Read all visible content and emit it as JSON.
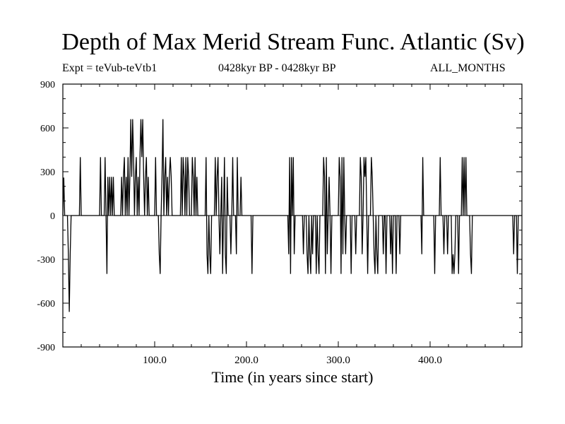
{
  "chart_data": {
    "type": "line",
    "title": "Depth of Max Merid Stream Func. Atlantic (Sv)",
    "subtitle_left": "Expt = teVub-teVtb1",
    "subtitle_center": "0428kyr BP - 0428kyr BP",
    "subtitle_right": "ALL_MONTHS",
    "xlabel": "Time (in years since start)",
    "ylabel": "",
    "xlim": [
      0,
      500
    ],
    "ylim": [
      -900,
      900
    ],
    "x_ticks": [
      100,
      200,
      300,
      400
    ],
    "x_tick_labels": [
      "100.0",
      "200.0",
      "300.0",
      "400.0"
    ],
    "y_ticks": [
      -900,
      -600,
      -300,
      0,
      300,
      600,
      900
    ],
    "y_tick_labels": [
      "-900",
      "-600",
      "-300",
      "0",
      "300",
      "600",
      "900"
    ],
    "grid": false,
    "legend": "none",
    "series": [
      {
        "color": "#000000",
        "points": [
          [
            0,
            0
          ],
          [
            1,
            260
          ],
          [
            2,
            0
          ],
          [
            5,
            0
          ],
          [
            6,
            -265
          ],
          [
            7,
            -660
          ],
          [
            8,
            -265
          ],
          [
            9,
            0
          ],
          [
            18,
            0
          ],
          [
            19,
            400
          ],
          [
            20,
            0
          ],
          [
            40,
            0
          ],
          [
            41,
            400
          ],
          [
            42,
            0
          ],
          [
            45,
            0
          ],
          [
            46,
            400
          ],
          [
            47,
            0
          ],
          [
            48,
            -400
          ],
          [
            49,
            265
          ],
          [
            50,
            0
          ],
          [
            51,
            265
          ],
          [
            52,
            0
          ],
          [
            53,
            265
          ],
          [
            54,
            0
          ],
          [
            55,
            265
          ],
          [
            56,
            0
          ],
          [
            63,
            0
          ],
          [
            64,
            265
          ],
          [
            65,
            0
          ],
          [
            66,
            265
          ],
          [
            67,
            400
          ],
          [
            68,
            0
          ],
          [
            69,
            265
          ],
          [
            70,
            0
          ],
          [
            71,
            400
          ],
          [
            72,
            0
          ],
          [
            73,
            265
          ],
          [
            74,
            660
          ],
          [
            75,
            265
          ],
          [
            76,
            660
          ],
          [
            77,
            400
          ],
          [
            78,
            0
          ],
          [
            79,
            265
          ],
          [
            80,
            400
          ],
          [
            81,
            0
          ],
          [
            82,
            265
          ],
          [
            83,
            0
          ],
          [
            84,
            400
          ],
          [
            85,
            660
          ],
          [
            86,
            400
          ],
          [
            87,
            660
          ],
          [
            88,
            265
          ],
          [
            89,
            0
          ],
          [
            90,
            265
          ],
          [
            91,
            400
          ],
          [
            92,
            0
          ],
          [
            93,
            265
          ],
          [
            94,
            0
          ],
          [
            100,
            0
          ],
          [
            101,
            400
          ],
          [
            102,
            0
          ],
          [
            104,
            0
          ],
          [
            105,
            -265
          ],
          [
            106,
            -400
          ],
          [
            107,
            0
          ],
          [
            108,
            265
          ],
          [
            109,
            660
          ],
          [
            110,
            0
          ],
          [
            111,
            265
          ],
          [
            112,
            400
          ],
          [
            113,
            0
          ],
          [
            114,
            265
          ],
          [
            115,
            0
          ],
          [
            116,
            265
          ],
          [
            117,
            400
          ],
          [
            118,
            265
          ],
          [
            119,
            0
          ],
          [
            128,
            0
          ],
          [
            129,
            400
          ],
          [
            130,
            0
          ],
          [
            131,
            400
          ],
          [
            132,
            265
          ],
          [
            133,
            0
          ],
          [
            134,
            400
          ],
          [
            135,
            0
          ],
          [
            136,
            400
          ],
          [
            137,
            265
          ],
          [
            138,
            0
          ],
          [
            140,
            0
          ],
          [
            141,
            400
          ],
          [
            142,
            265
          ],
          [
            143,
            0
          ],
          [
            144,
            400
          ],
          [
            145,
            0
          ],
          [
            146,
            265
          ],
          [
            147,
            0
          ],
          [
            155,
            0
          ],
          [
            156,
            400
          ],
          [
            157,
            -265
          ],
          [
            158,
            -400
          ],
          [
            159,
            0
          ],
          [
            160,
            -265
          ],
          [
            161,
            -400
          ],
          [
            162,
            0
          ],
          [
            165,
            0
          ],
          [
            166,
            400
          ],
          [
            167,
            0
          ],
          [
            168,
            265
          ],
          [
            169,
            400
          ],
          [
            170,
            0
          ],
          [
            171,
            -265
          ],
          [
            172,
            0
          ],
          [
            173,
            265
          ],
          [
            174,
            -400
          ],
          [
            175,
            0
          ],
          [
            176,
            400
          ],
          [
            177,
            -265
          ],
          [
            178,
            -400
          ],
          [
            179,
            265
          ],
          [
            180,
            0
          ],
          [
            182,
            0
          ],
          [
            183,
            -265
          ],
          [
            184,
            0
          ],
          [
            185,
            400
          ],
          [
            186,
            0
          ],
          [
            188,
            0
          ],
          [
            189,
            -265
          ],
          [
            190,
            400
          ],
          [
            191,
            0
          ],
          [
            193,
            0
          ],
          [
            194,
            265
          ],
          [
            195,
            0
          ],
          [
            205,
            0
          ],
          [
            206,
            -400
          ],
          [
            207,
            0
          ],
          [
            245,
            0
          ],
          [
            246,
            -265
          ],
          [
            247,
            400
          ],
          [
            248,
            -400
          ],
          [
            249,
            400
          ],
          [
            250,
            0
          ],
          [
            251,
            400
          ],
          [
            252,
            -265
          ],
          [
            253,
            0
          ],
          [
            261,
            0
          ],
          [
            262,
            -265
          ],
          [
            263,
            0
          ],
          [
            265,
            0
          ],
          [
            266,
            -265
          ],
          [
            267,
            -400
          ],
          [
            268,
            0
          ],
          [
            269,
            -265
          ],
          [
            270,
            -400
          ],
          [
            271,
            0
          ],
          [
            272,
            -265
          ],
          [
            273,
            0
          ],
          [
            275,
            0
          ],
          [
            276,
            -400
          ],
          [
            277,
            0
          ],
          [
            278,
            -265
          ],
          [
            279,
            -400
          ],
          [
            280,
            0
          ],
          [
            283,
            0
          ],
          [
            284,
            400
          ],
          [
            285,
            265
          ],
          [
            286,
            -400
          ],
          [
            287,
            400
          ],
          [
            288,
            -265
          ],
          [
            289,
            0
          ],
          [
            290,
            265
          ],
          [
            291,
            0
          ],
          [
            292,
            -400
          ],
          [
            293,
            0
          ],
          [
            300,
            0
          ],
          [
            301,
            400
          ],
          [
            302,
            265
          ],
          [
            303,
            -400
          ],
          [
            304,
            400
          ],
          [
            305,
            -265
          ],
          [
            306,
            400
          ],
          [
            307,
            0
          ],
          [
            308,
            -265
          ],
          [
            309,
            0
          ],
          [
            313,
            0
          ],
          [
            314,
            -400
          ],
          [
            315,
            0
          ],
          [
            318,
            0
          ],
          [
            319,
            -265
          ],
          [
            320,
            0
          ],
          [
            323,
            0
          ],
          [
            324,
            400
          ],
          [
            325,
            265
          ],
          [
            326,
            -265
          ],
          [
            327,
            0
          ],
          [
            328,
            400
          ],
          [
            329,
            265
          ],
          [
            330,
            400
          ],
          [
            331,
            0
          ],
          [
            332,
            -400
          ],
          [
            333,
            0
          ],
          [
            335,
            0
          ],
          [
            336,
            400
          ],
          [
            337,
            265
          ],
          [
            338,
            0
          ],
          [
            339,
            -265
          ],
          [
            340,
            -400
          ],
          [
            341,
            0
          ],
          [
            342,
            -265
          ],
          [
            343,
            -400
          ],
          [
            344,
            0
          ],
          [
            348,
            0
          ],
          [
            349,
            -265
          ],
          [
            350,
            0
          ],
          [
            351,
            0
          ],
          [
            352,
            -400
          ],
          [
            353,
            0
          ],
          [
            356,
            0
          ],
          [
            357,
            -265
          ],
          [
            358,
            0
          ],
          [
            359,
            -400
          ],
          [
            360,
            0
          ],
          [
            362,
            0
          ],
          [
            363,
            -400
          ],
          [
            364,
            0
          ],
          [
            366,
            0
          ],
          [
            367,
            -265
          ],
          [
            368,
            0
          ],
          [
            390,
            0
          ],
          [
            391,
            -265
          ],
          [
            392,
            400
          ],
          [
            393,
            0
          ],
          [
            404,
            0
          ],
          [
            405,
            -400
          ],
          [
            406,
            0
          ],
          [
            410,
            0
          ],
          [
            411,
            400
          ],
          [
            412,
            0
          ],
          [
            414,
            0
          ],
          [
            415,
            -265
          ],
          [
            416,
            0
          ],
          [
            418,
            0
          ],
          [
            419,
            -265
          ],
          [
            420,
            0
          ],
          [
            423,
            0
          ],
          [
            424,
            -400
          ],
          [
            425,
            -265
          ],
          [
            426,
            -400
          ],
          [
            427,
            -265
          ],
          [
            428,
            0
          ],
          [
            430,
            0
          ],
          [
            431,
            -400
          ],
          [
            432,
            0
          ],
          [
            434,
            0
          ],
          [
            435,
            400
          ],
          [
            436,
            0
          ],
          [
            437,
            400
          ],
          [
            438,
            0
          ],
          [
            439,
            400
          ],
          [
            440,
            0
          ],
          [
            443,
            0
          ],
          [
            444,
            -265
          ],
          [
            445,
            -400
          ],
          [
            446,
            0
          ],
          [
            490,
            0
          ],
          [
            491,
            -265
          ],
          [
            492,
            0
          ],
          [
            494,
            0
          ],
          [
            495,
            -400
          ],
          [
            496,
            0
          ],
          [
            500,
            0
          ]
        ]
      }
    ]
  }
}
